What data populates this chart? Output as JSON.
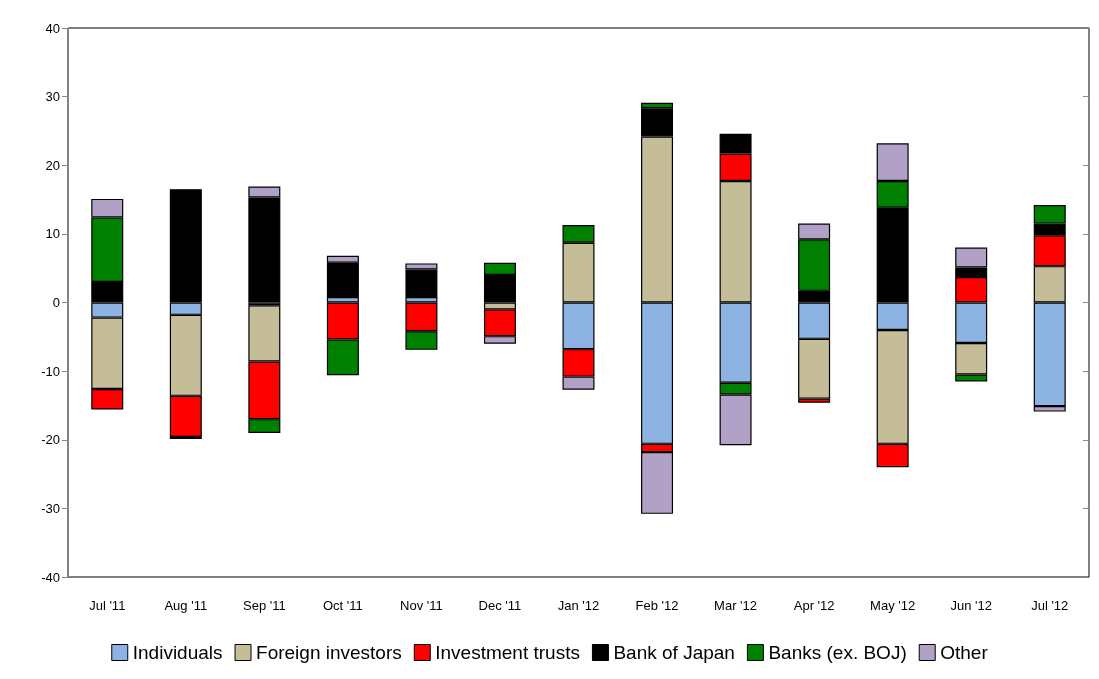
{
  "chart_data": {
    "type": "bar",
    "stacked": true,
    "categories": [
      "Jul '11",
      "Aug '11",
      "Sep '11",
      "Oct '11",
      "Nov '11",
      "Dec '11",
      "Jan '12",
      "Feb '12",
      "Mar '12",
      "Apr '12",
      "May '12",
      "Jun '12",
      "Jul '12"
    ],
    "series": [
      {
        "name": "Individuals",
        "color": "#8db3e2",
        "values": [
          -2.2,
          -1.8,
          -0.4,
          0.8,
          0.8,
          null,
          -6.8,
          -20.6,
          -11.7,
          -5.3,
          -4.0,
          -5.9,
          -15.1
        ]
      },
      {
        "name": "Foreign investors",
        "color": "#c4bd97",
        "values": [
          -10.4,
          -11.8,
          -8.2,
          0.3,
          0.3,
          -1.0,
          8.7,
          24.2,
          17.7,
          -8.7,
          -16.6,
          -4.6,
          5.3
        ]
      },
      {
        "name": "Investment trusts",
        "color": "#ff0000",
        "values": [
          -3.0,
          -6.0,
          -8.4,
          -5.4,
          -4.2,
          -3.9,
          -4.0,
          -1.2,
          4.0,
          -0.6,
          -3.4,
          3.7,
          4.5
        ]
      },
      {
        "name": "Bank of Japan",
        "color": "#000000",
        "values": [
          3.0,
          16.5,
          15.3,
          4.7,
          3.7,
          4.0,
          null,
          4.1,
          2.9,
          1.7,
          13.8,
          1.4,
          1.7
        ]
      },
      {
        "name": "Banks (ex. BOJ)",
        "color": "#008000",
        "values": [
          9.4,
          null,
          -2.0,
          -5.2,
          -2.7,
          1.8,
          2.6,
          0.8,
          -1.7,
          7.5,
          3.9,
          -1.0,
          2.7
        ]
      },
      {
        "name": "Other",
        "color": "#b2a1c7",
        "values": [
          2.7,
          -0.3,
          1.6,
          1.0,
          0.9,
          -1.1,
          -1.9,
          -9.0,
          -7.4,
          2.3,
          5.5,
          2.9,
          -0.8
        ]
      }
    ],
    "ylim": [
      -40,
      40
    ],
    "yticks": [
      -40,
      -30,
      -20,
      -10,
      0,
      10,
      20,
      30,
      40
    ],
    "grid": false,
    "legend": "bottom"
  }
}
